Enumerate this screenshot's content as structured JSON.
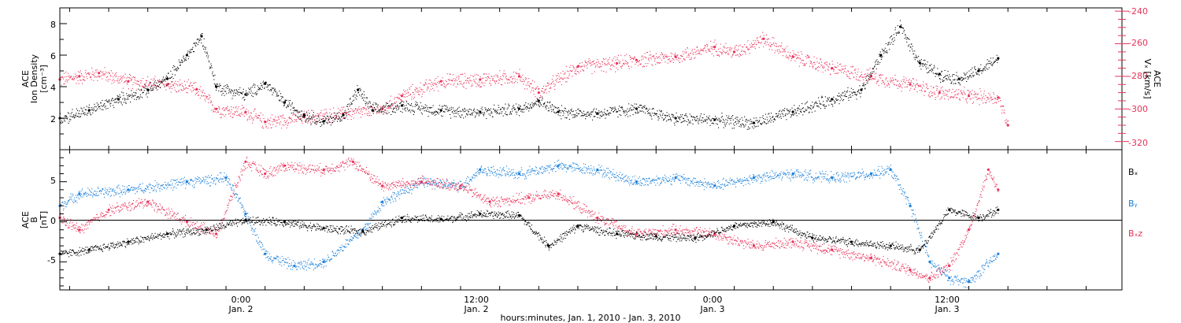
{
  "colors": {
    "black": "#000000",
    "red": "#e8325a",
    "blue": "#1a7fd8",
    "axis": "#000000"
  },
  "time_axis": {
    "start": "2010-01-01 14:30",
    "end": "2010-01-03 20:50",
    "ticks": [
      {
        "t": "2010-01-02 00:00",
        "time": "0:00",
        "date": "Jan. 2"
      },
      {
        "t": "2010-01-02 12:00",
        "time": "12:00",
        "date": "Jan. 2"
      },
      {
        "t": "2010-01-03 00:00",
        "time": "0:00",
        "date": "Jan. 3"
      },
      {
        "t": "2010-01-03 12:00",
        "time": "12:00",
        "date": "Jan. 3"
      }
    ],
    "xlabel": "hours:minutes, Jan.  1, 2010 - Jan.  3, 2010"
  },
  "top_panel": {
    "left_label_1": "ACE",
    "left_label_2": "Ion Density",
    "left_unit": "[cm⁻³]",
    "right_label_1": "ACE",
    "right_label_2": "Vₓ [km/s]",
    "left_ticks": [
      "2",
      "4",
      "6",
      "8"
    ],
    "right_ticks": [
      "-240",
      "-260",
      "-280",
      "-300",
      "-320"
    ]
  },
  "bottom_panel": {
    "left_label_1": "ACE",
    "left_label_2": "B",
    "left_unit": "[nT]",
    "ticks": [
      "-5",
      "0",
      "5"
    ],
    "legend": [
      {
        "label": "Bₓ",
        "color": "#000000"
      },
      {
        "label": "Bᵧ",
        "color": "#1a7fd8"
      },
      {
        "label": "Bₓz",
        "color": "#e8325a"
      }
    ]
  },
  "chart_data": [
    {
      "type": "scatter",
      "title": "",
      "xlabel": "hours:minutes, Jan.  1, 2010 - Jan.  3, 2010",
      "ylabel": "ACE Ion Density [cm⁻³]",
      "y2label": "ACE Vₓ [km/s]",
      "ylim": [
        0,
        9
      ],
      "y2lim": [
        -325,
        -238
      ],
      "series": [
        {
          "name": "",
          "axis": "left",
          "color": "#000000",
          "x": [
            "2010-01-01 14:30",
            "2010-01-01 16:00",
            "2010-01-01 17:30",
            "2010-01-01 19:00",
            "2010-01-01 20:00",
            "2010-01-01 21:00",
            "2010-01-01 21:45",
            "2010-01-01 22:30",
            "2010-01-02 00:00",
            "2010-01-02 01:00",
            "2010-01-02 02:00",
            "2010-01-02 03:00",
            "2010-01-02 04:00",
            "2010-01-02 05:00",
            "2010-01-02 05:45",
            "2010-01-02 06:30",
            "2010-01-02 08:00",
            "2010-01-02 10:00",
            "2010-01-02 12:00",
            "2010-01-02 14:00",
            "2010-01-02 15:00",
            "2010-01-02 16:00",
            "2010-01-02 18:00",
            "2010-01-02 20:00",
            "2010-01-02 22:00",
            "2010-01-03 00:00",
            "2010-01-03 02:00",
            "2010-01-03 04:00",
            "2010-01-03 06:00",
            "2010-01-03 07:30",
            "2010-01-03 08:30",
            "2010-01-03 09:30",
            "2010-01-03 10:30",
            "2010-01-03 11:30",
            "2010-01-03 12:30",
            "2010-01-03 13:30",
            "2010-01-03 14:30"
          ],
          "y": [
            2.0,
            2.5,
            3.2,
            3.8,
            4.5,
            6.0,
            7.2,
            4.0,
            3.5,
            4.2,
            3.0,
            2.2,
            1.8,
            2.2,
            3.8,
            2.5,
            2.8,
            2.5,
            2.4,
            2.6,
            3.1,
            2.4,
            2.3,
            2.6,
            2.0,
            1.9,
            1.7,
            2.4,
            3.2,
            3.8,
            6.0,
            7.8,
            5.5,
            4.8,
            4.5,
            5.0,
            5.8
          ]
        },
        {
          "name": "",
          "axis": "right",
          "color": "#e8325a",
          "x": [
            "2010-01-01 14:30",
            "2010-01-01 15:30",
            "2010-01-01 16:30",
            "2010-01-01 18:00",
            "2010-01-01 20:00",
            "2010-01-01 21:30",
            "2010-01-01 22:30",
            "2010-01-02 00:00",
            "2010-01-02 01:00",
            "2010-01-02 03:00",
            "2010-01-02 05:00",
            "2010-01-02 07:00",
            "2010-01-02 08:00",
            "2010-01-02 10:00",
            "2010-01-02 12:00",
            "2010-01-02 14:00",
            "2010-01-02 15:00",
            "2010-01-02 17:00",
            "2010-01-02 19:00",
            "2010-01-02 20:00",
            "2010-01-02 22:00",
            "2010-01-03 00:00",
            "2010-01-03 01:00",
            "2010-01-03 02:30",
            "2010-01-03 04:00",
            "2010-01-03 06:00",
            "2010-01-03 08:00",
            "2010-01-03 10:00",
            "2010-01-03 11:30",
            "2010-01-03 13:00",
            "2010-01-03 14:30",
            "2010-01-03 15:00"
          ],
          "y": [
            -282,
            -280,
            -278,
            -283,
            -285,
            -288,
            -300,
            -302,
            -308,
            -305,
            -303,
            -300,
            -292,
            -283,
            -282,
            -280,
            -290,
            -274,
            -272,
            -270,
            -268,
            -262,
            -265,
            -257,
            -268,
            -275,
            -280,
            -285,
            -290,
            -292,
            -293,
            -310
          ]
        }
      ]
    },
    {
      "type": "scatter",
      "title": "",
      "xlabel": "hours:minutes, Jan.  1, 2010 - Jan.  3, 2010",
      "ylabel": "ACE B [nT]",
      "ylim": [
        -8.5,
        9
      ],
      "series": [
        {
          "name": "Bₓ",
          "color": "#000000",
          "x": [
            "2010-01-01 14:30",
            "2010-01-01 16:00",
            "2010-01-01 18:00",
            "2010-01-01 20:00",
            "2010-01-01 22:00",
            "2010-01-02 00:00",
            "2010-01-02 02:00",
            "2010-01-02 04:00",
            "2010-01-02 06:00",
            "2010-01-02 08:00",
            "2010-01-02 10:00",
            "2010-01-02 12:00",
            "2010-01-02 14:00",
            "2010-01-02 15:30",
            "2010-01-02 17:00",
            "2010-01-02 19:00",
            "2010-01-02 21:00",
            "2010-01-02 23:00",
            "2010-01-03 01:00",
            "2010-01-03 03:00",
            "2010-01-03 05:00",
            "2010-01-03 07:00",
            "2010-01-03 09:00",
            "2010-01-03 10:30",
            "2010-01-03 12:00",
            "2010-01-03 13:30",
            "2010-01-03 14:30"
          ],
          "y": [
            -4.0,
            -3.5,
            -2.5,
            -1.5,
            -1.0,
            0.2,
            0.0,
            -0.8,
            -1.2,
            0.5,
            0.3,
            1.0,
            0.8,
            -3.0,
            -0.5,
            -1.5,
            -1.8,
            -2.0,
            -0.5,
            0.0,
            -2.0,
            -2.5,
            -3.0,
            -3.5,
            1.5,
            0.5,
            1.5
          ]
        },
        {
          "name": "Bᵧ",
          "color": "#1a7fd8",
          "x": [
            "2010-01-01 14:30",
            "2010-01-01 15:30",
            "2010-01-01 18:00",
            "2010-01-01 21:00",
            "2010-01-01 23:00",
            "2010-01-02 00:00",
            "2010-01-02 01:00",
            "2010-01-02 02:30",
            "2010-01-02 04:00",
            "2010-01-02 06:00",
            "2010-01-02 07:00",
            "2010-01-02 09:00",
            "2010-01-02 11:00",
            "2010-01-02 12:00",
            "2010-01-02 14:00",
            "2010-01-02 16:00",
            "2010-01-02 18:00",
            "2010-01-02 20:00",
            "2010-01-02 22:00",
            "2010-01-03 00:00",
            "2010-01-03 02:00",
            "2010-01-03 04:00",
            "2010-01-03 06:00",
            "2010-01-03 08:00",
            "2010-01-03 09:00",
            "2010-01-03 10:00",
            "2010-01-03 11:00",
            "2010-01-03 12:00",
            "2010-01-03 13:00",
            "2010-01-03 14:30"
          ],
          "y": [
            2.0,
            3.5,
            4.0,
            5.0,
            5.5,
            1.0,
            -4.0,
            -5.5,
            -5.0,
            -1.0,
            2.5,
            5.0,
            4.5,
            6.5,
            6.0,
            7.0,
            6.5,
            5.0,
            5.5,
            4.5,
            5.5,
            6.0,
            5.5,
            6.0,
            6.5,
            2.0,
            -5.0,
            -7.0,
            -7.5,
            -4.0
          ]
        },
        {
          "name": "Bₓz",
          "color": "#e8325a",
          "x": [
            "2010-01-01 14:30",
            "2010-01-01 15:30",
            "2010-01-01 17:00",
            "2010-01-01 19:00",
            "2010-01-01 21:00",
            "2010-01-01 22:30",
            "2010-01-02 00:00",
            "2010-01-02 01:00",
            "2010-01-02 02:00",
            "2010-01-02 04:00",
            "2010-01-02 05:30",
            "2010-01-02 07:00",
            "2010-01-02 09:00",
            "2010-01-02 11:00",
            "2010-01-02 12:30",
            "2010-01-02 14:30",
            "2010-01-02 16:00",
            "2010-01-02 18:00",
            "2010-01-02 20:00",
            "2010-01-02 22:00",
            "2010-01-03 00:00",
            "2010-01-03 02:00",
            "2010-01-03 04:00",
            "2010-01-03 06:00",
            "2010-01-03 08:00",
            "2010-01-03 10:00",
            "2010-01-03 11:00",
            "2010-01-03 12:00",
            "2010-01-03 13:00",
            "2010-01-03 14:00",
            "2010-01-03 14:30"
          ],
          "y": [
            0.5,
            -1.0,
            1.5,
            2.5,
            0.0,
            -1.5,
            7.5,
            6.0,
            7.0,
            6.5,
            7.5,
            4.5,
            5.0,
            4.5,
            2.5,
            3.0,
            3.5,
            0.5,
            -1.5,
            -1.0,
            -1.5,
            -3.0,
            -2.5,
            -3.5,
            -4.5,
            -6.0,
            -7.0,
            -5.5,
            -1.0,
            6.5,
            4.0
          ]
        }
      ]
    }
  ]
}
